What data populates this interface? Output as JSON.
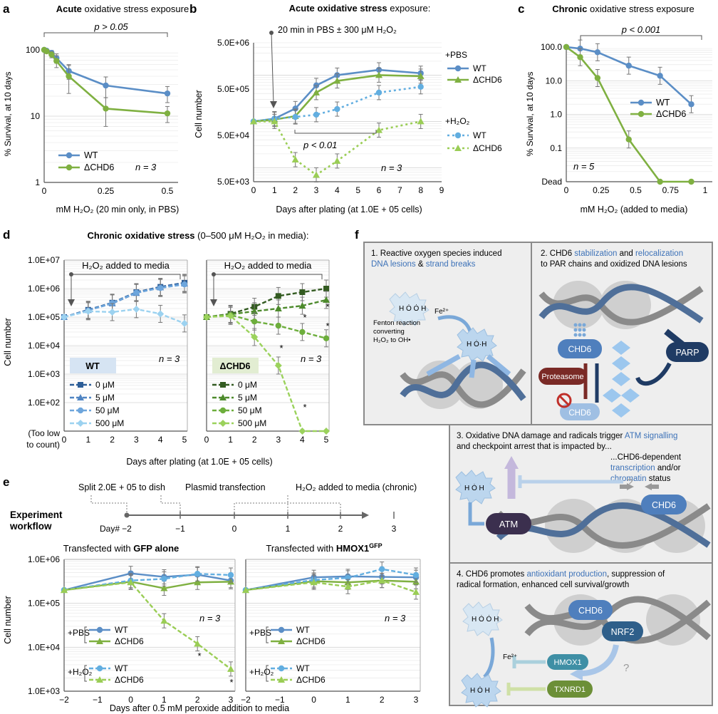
{
  "colors": {
    "wt": "#5b8ec6",
    "chd6": "#7fb041",
    "wt_h2o2": "#62aee0",
    "chd6_h2o2": "#9acd55",
    "d_wt": [
      "#2c5d97",
      "#4f84c2",
      "#6ea6dc",
      "#9cd2f0"
    ],
    "d_chd6": [
      "#335b21",
      "#4d8a2c",
      "#6dae3c",
      "#9bd25c"
    ],
    "panel_f_bg": "#eeeeee",
    "panel_f_border": "#888888",
    "chd6_node": "#4f7fbd",
    "parp": "#1f3b64",
    "proteasome": "#7a2a26",
    "atm": "#3b2f4e",
    "nrf2": "#2f5f8a",
    "hmox1": "#3f8fa5",
    "txnrd1": "#6c8f37",
    "link_text": "#3d72b8"
  },
  "chart_data": [
    {
      "panel": "a",
      "type": "line",
      "title_bold": "Acute",
      "title_rest": " oxidative stress exposure",
      "xlabel": "mM H₂O₂ (20 min only, in PBS)",
      "ylabel": "% Survival, at 10 days",
      "xlim": [
        0,
        0.5
      ],
      "ylim": [
        1,
        100
      ],
      "yscale": "log",
      "xticks": [
        "0",
        "0.25",
        "0.5"
      ],
      "yticks": [
        "1",
        "10",
        "100"
      ],
      "annotation": "p > 0.05",
      "n_label": "n = 3",
      "series": [
        {
          "name": "WT",
          "x": [
            0,
            0.01,
            0.03,
            0.05,
            0.1,
            0.25,
            0.5
          ],
          "y": [
            100,
            97,
            90,
            75,
            48,
            29,
            22
          ],
          "err": [
            0,
            3,
            8,
            12,
            12,
            10,
            6
          ]
        },
        {
          "name": "ΔCHD6",
          "x": [
            0,
            0.01,
            0.03,
            0.05,
            0.1,
            0.25,
            0.5
          ],
          "y": [
            100,
            95,
            85,
            68,
            40,
            13,
            11
          ],
          "err": [
            0,
            4,
            9,
            14,
            18,
            6,
            3
          ]
        }
      ]
    },
    {
      "panel": "b",
      "type": "line",
      "title_bold": "Acute oxidative stress",
      "title_rest": " exposure:",
      "subtitle": "20 min in PBS ± 300 μM H₂O₂",
      "xlabel": "Days after plating (at 1.0E + 05 cells)",
      "ylabel": "Cell number",
      "xlim": [
        0,
        9
      ],
      "ylim": [
        5000,
        1000000
      ],
      "yscale": "log",
      "xticks": [
        "0",
        "1",
        "2",
        "3",
        "4",
        "5",
        "6",
        "7",
        "8",
        "9"
      ],
      "yticks": [
        "5.0E+03",
        "5.0E+04",
        "5.0E+05",
        "5.0E+06"
      ],
      "annotation": "p < 0.01",
      "n_label": "n = 3",
      "legend_group1": "+PBS",
      "legend_group2": "+H₂O₂",
      "series": [
        {
          "name": "WT",
          "group": "+PBS",
          "x": [
            0,
            1,
            2,
            3,
            4,
            6,
            8
          ],
          "y": [
            100000,
            115000,
            190000,
            600000,
            1000000,
            1300000,
            1100000
          ]
        },
        {
          "name": "ΔCHD6",
          "group": "+PBS",
          "x": [
            0,
            1,
            2,
            3,
            4,
            6,
            8
          ],
          "y": [
            100000,
            110000,
            130000,
            420000,
            750000,
            1000000,
            950000
          ]
        },
        {
          "name": "WT",
          "group": "+H₂O₂",
          "x": [
            0,
            1,
            2,
            3,
            4,
            6,
            8
          ],
          "y": [
            100000,
            115000,
            125000,
            140000,
            185000,
            420000,
            560000
          ]
        },
        {
          "name": "ΔCHD6",
          "group": "+H₂O₂",
          "x": [
            0,
            1,
            2,
            3,
            4,
            6,
            8
          ],
          "y": [
            100000,
            100000,
            15000,
            7000,
            14000,
            65000,
            100000
          ]
        }
      ]
    },
    {
      "panel": "c",
      "type": "line",
      "title_bold": "Chronic",
      "title_rest": " oxidative stress exposure",
      "xlabel": "mM H₂O₂ (added to media)",
      "ylabel": "% Survival, at 10 days",
      "xlim": [
        0,
        1
      ],
      "ylim": [
        0.01,
        100
      ],
      "yscale": "log",
      "xticks": [
        "0",
        "0.25",
        "0.5",
        "0.75",
        "1"
      ],
      "yticks": [
        "Dead",
        "0.1",
        "1.0",
        "10.0",
        "100.0"
      ],
      "annotation": "p < 0.001",
      "n_label": "n = 5",
      "series": [
        {
          "name": "WT",
          "x": [
            0,
            0.1,
            0.225,
            0.45,
            0.675,
            0.9
          ],
          "y": [
            100,
            90,
            70,
            28,
            14,
            2
          ]
        },
        {
          "name": "ΔCHD6",
          "x": [
            0,
            0.1,
            0.225,
            0.45,
            0.675,
            0.9
          ],
          "y": [
            100,
            50,
            12,
            0.18,
            0.01,
            0.01
          ]
        }
      ]
    },
    {
      "panel": "d",
      "type": "line",
      "title_bold": "Chronic oxidative stress",
      "title_rest": " (0–500 μM H₂O₂ in media):",
      "xlabel": "Days after plating (at 1.0E + 05 cells)",
      "ylabel": "Cell number",
      "ylim": [
        10,
        10000000
      ],
      "yscale": "log",
      "yticks": [
        "(Too low\nto count)",
        "1.0E+02",
        "1.0E+03",
        "1.0E+04",
        "1.0E+05",
        "1.0E+06",
        "1.0E+07"
      ],
      "xticks": [
        "0",
        "1",
        "2",
        "3",
        "4",
        "5"
      ],
      "box_label": "H₂O₂ added to media",
      "n_label": "n = 3",
      "legend_entries": [
        "0 μM",
        "5 μM",
        "50 μM",
        "500 μM"
      ],
      "subpanels": [
        {
          "name": "WT",
          "series": [
            {
              "name": "0 μM",
              "x": [
                0,
                1,
                2,
                3,
                4,
                5
              ],
              "y": [
                100000,
                180000,
                320000,
                750000,
                1150000,
                1600000
              ]
            },
            {
              "name": "5 μM",
              "x": [
                0,
                1,
                2,
                3,
                4,
                5
              ],
              "y": [
                100000,
                175000,
                300000,
                700000,
                1100000,
                1500000
              ]
            },
            {
              "name": "50 μM",
              "x": [
                0,
                1,
                2,
                3,
                4,
                5
              ],
              "y": [
                100000,
                170000,
                310000,
                720000,
                1050000,
                1400000
              ]
            },
            {
              "name": "500 μM",
              "x": [
                0,
                1,
                2,
                3,
                4,
                5
              ],
              "y": [
                100000,
                160000,
                150000,
                190000,
                130000,
                60000
              ]
            }
          ]
        },
        {
          "name": "ΔCHD6",
          "series": [
            {
              "name": "0 μM",
              "x": [
                0,
                1,
                2,
                3,
                4,
                5
              ],
              "y": [
                100000,
                130000,
                230000,
                550000,
                750000,
                1000000
              ]
            },
            {
              "name": "5 μM",
              "x": [
                0,
                1,
                2,
                3,
                4,
                5
              ],
              "y": [
                100000,
                125000,
                160000,
                200000,
                250000,
                400000
              ]
            },
            {
              "name": "50 μM",
              "x": [
                0,
                1,
                2,
                3,
                4,
                5
              ],
              "y": [
                100000,
                120000,
                70000,
                50000,
                30000,
                18000
              ]
            },
            {
              "name": "500 μM",
              "x": [
                0,
                1,
                2,
                3,
                4,
                5
              ],
              "y": [
                100000,
                110000,
                20000,
                2000,
                10,
                10
              ]
            }
          ]
        }
      ]
    },
    {
      "panel": "e",
      "type": "line",
      "xlabel": "Days after 0.5 mM peroxide addition to media",
      "ylabel": "Cell number",
      "xlim": [
        -2,
        3
      ],
      "ylim": [
        1000,
        1000000
      ],
      "yscale": "log",
      "xticks": [
        "−2",
        "−1",
        "0",
        "1",
        "2",
        "3"
      ],
      "yticks": [
        "1.0E+03",
        "1.0E+04",
        "1.0E+05",
        "1.0E+06"
      ],
      "n_label": "n = 3",
      "subpanels": [
        {
          "title_pre": "Transfected with ",
          "title_bold": "GFP alone",
          "series": [
            {
              "name": "WT",
              "group": "+PBS",
              "x": [
                -2,
                0,
                1,
                2,
                3
              ],
              "y": [
                200000,
                480000,
                400000,
                450000,
                330000
              ]
            },
            {
              "name": "ΔCHD6",
              "group": "+PBS",
              "x": [
                -2,
                0,
                1,
                2,
                3
              ],
              "y": [
                200000,
                310000,
                220000,
                300000,
                310000
              ]
            },
            {
              "name": "WT",
              "group": "+H₂O₂",
              "x": [
                -2,
                0,
                1,
                2,
                3
              ],
              "y": [
                200000,
                330000,
                360000,
                470000,
                440000
              ]
            },
            {
              "name": "ΔCHD6",
              "group": "+H₂O₂",
              "x": [
                -2,
                0,
                1,
                2,
                3
              ],
              "y": [
                200000,
                300000,
                40000,
                12000,
                3200
              ]
            }
          ]
        },
        {
          "title_pre": "Transfected with ",
          "title_bold": "HMOX1",
          "title_sup": "GFP",
          "series": [
            {
              "name": "WT",
              "group": "+PBS",
              "x": [
                -2,
                0,
                1,
                2,
                3
              ],
              "y": [
                200000,
                390000,
                410000,
                400000,
                390000
              ]
            },
            {
              "name": "ΔCHD6",
              "group": "+PBS",
              "x": [
                -2,
                0,
                1,
                2,
                3
              ],
              "y": [
                200000,
                320000,
                300000,
                330000,
                310000
              ]
            },
            {
              "name": "WT",
              "group": "+H₂O₂",
              "x": [
                -2,
                0,
                1,
                2,
                3
              ],
              "y": [
                200000,
                340000,
                380000,
                600000,
                440000
              ]
            },
            {
              "name": "ΔCHD6",
              "group": "+H₂O₂",
              "x": [
                -2,
                0,
                1,
                2,
                3
              ],
              "y": [
                200000,
                300000,
                240000,
                330000,
                180000
              ]
            }
          ]
        }
      ]
    }
  ],
  "labels": {
    "panel_letters": [
      "a",
      "b",
      "c",
      "d",
      "e",
      "f"
    ],
    "star": "*",
    "plus_pbs": "+PBS",
    "plus_h2o2": "+H₂O₂",
    "legend_wt": "WT",
    "legend_chd6": "ΔCHD6"
  },
  "workflow": {
    "title_line1": "Experiment",
    "title_line2": "workflow",
    "day_label": "Day#",
    "days": [
      "−2",
      "−1",
      "0",
      "1",
      "2",
      "3"
    ],
    "step1": "Split 2.0E + 05 to dish",
    "step2": "Plasmid transfection",
    "step3": "H₂O₂ added to media (chronic)"
  },
  "panel_f": {
    "box1": {
      "title_line1": "1. Reactive oxygen species induced",
      "title_link1": "DNA lesions",
      "title_amp": " & ",
      "title_link2": "strand breaks",
      "fenton_line1": "Fenton reaction",
      "fenton_line2": "converting",
      "fenton_line3": "H₂O₂ to OH•",
      "fe": "Fe²⁺"
    },
    "box2": {
      "title_pre": "2. CHD6 ",
      "title_link1": "stabilization",
      "title_mid": " and ",
      "title_link2": "relocalization",
      "title_line2": "to PAR chains and oxidized DNA lesions",
      "chd6": "CHD6",
      "parp": "PARP",
      "proteasome": "Proteasome",
      "chd6_degraded": "CHD6"
    },
    "box3": {
      "title_line1_pre": "3. Oxidative DNA damage and radicals trigger ",
      "title_link": "ATM signalling",
      "title_line2": "and checkpoint arrest that is impacted by...",
      "right_line1": "...CHD6-dependent",
      "right_link1": "transcription",
      "right_and": " and/or",
      "right_link2": "chromatin",
      "right_status": " status",
      "atm": "ATM",
      "chd6": "CHD6",
      "question": "?"
    },
    "box4": {
      "title_line1_pre": "4. CHD6 promotes ",
      "title_link": "antioxidant production",
      "title_line1_post": ", suppression of",
      "title_line2": "radical formation, enhanced cell survival/growth",
      "chd6": "CHD6",
      "nrf2": "NRF2",
      "hmox1": "HMOX1",
      "txnrd1": "TXNRD1",
      "fe": "Fe²⁺",
      "question": "?"
    }
  }
}
